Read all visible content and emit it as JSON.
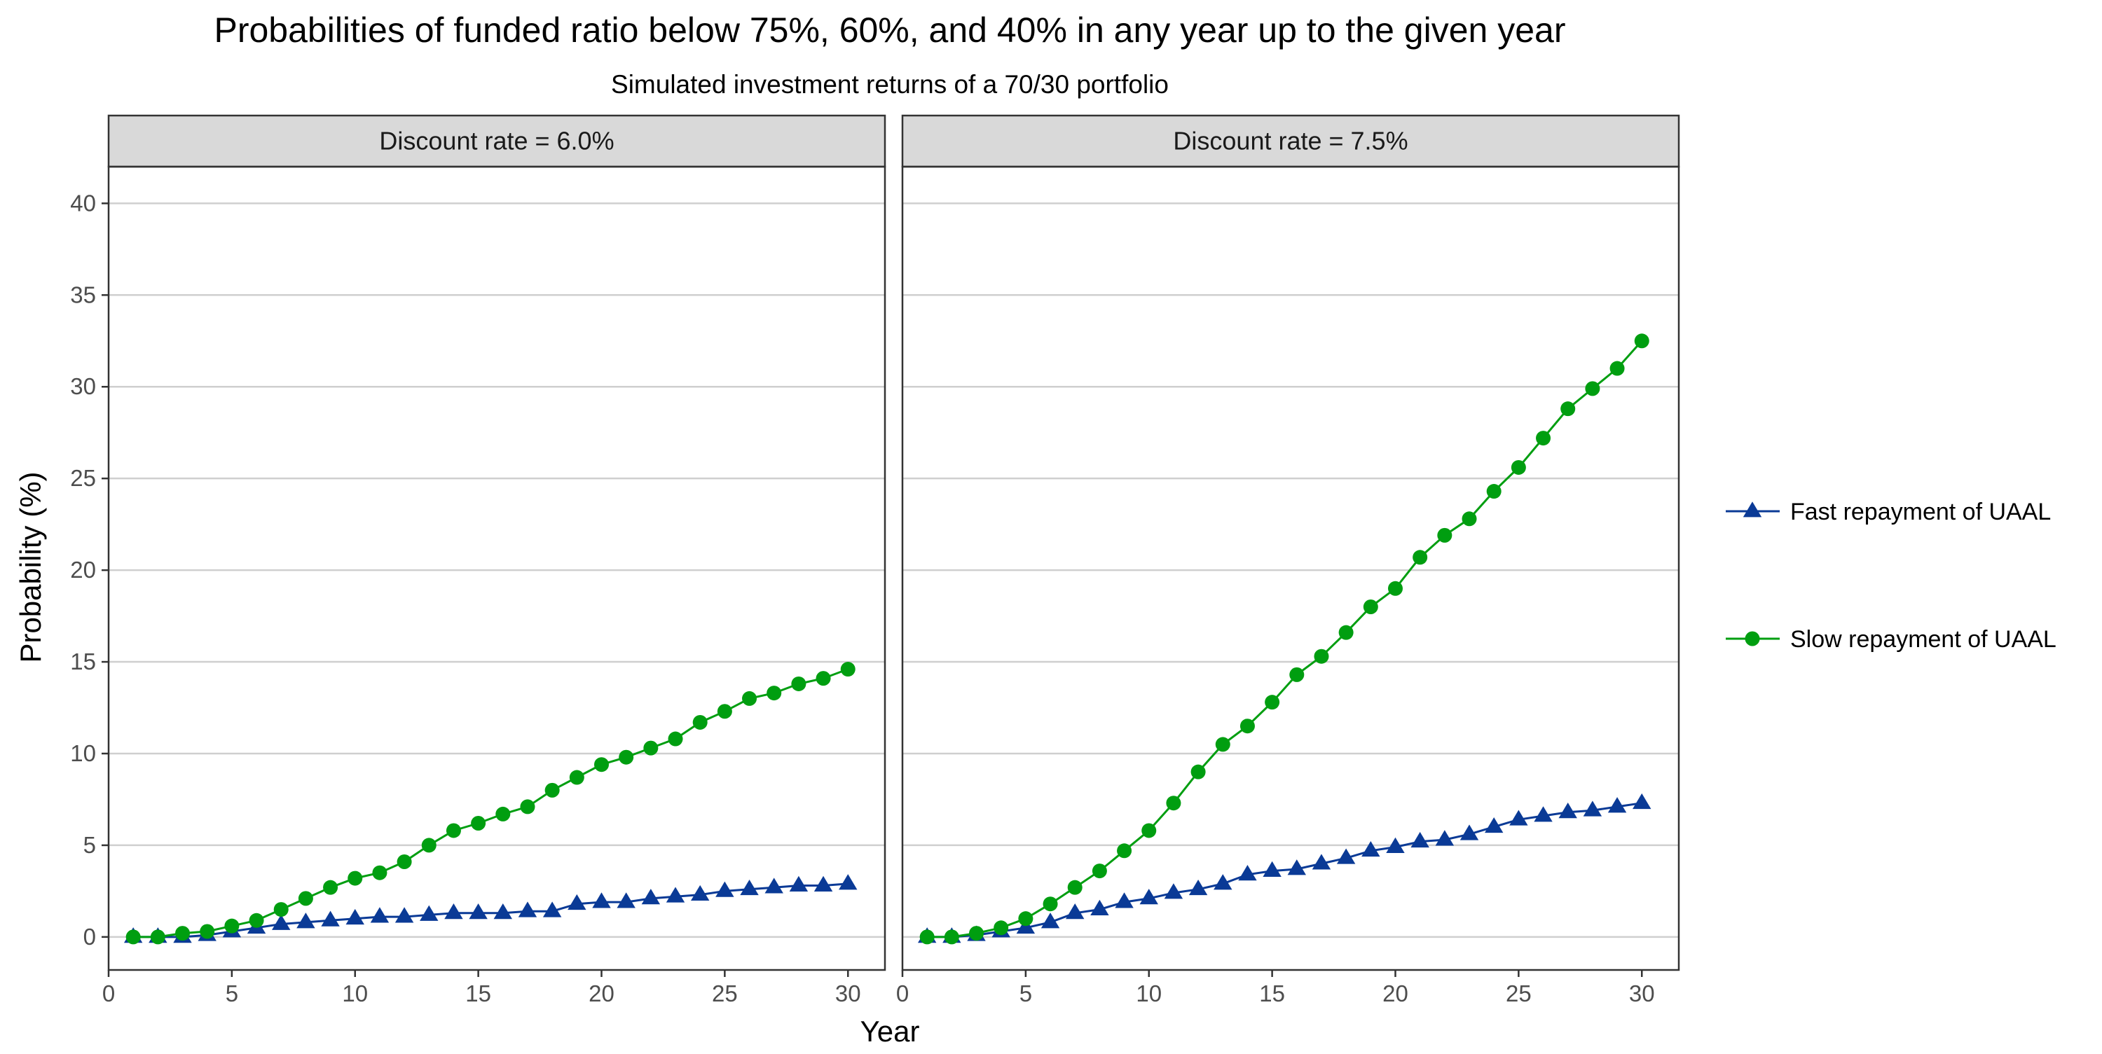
{
  "chart_data": {
    "type": "line",
    "title": "Probabilities of funded ratio below 75%, 60%, and 40% in any year up to the given year",
    "subtitle": "Simulated investment returns of a 70/30 portfolio",
    "xlabel": "Year",
    "ylabel": "Probability (%)",
    "xlim": [
      0,
      31.5
    ],
    "ylim": [
      -1.8,
      42
    ],
    "x_ticks": [
      0,
      5,
      10,
      15,
      20,
      25,
      30
    ],
    "y_ticks": [
      0,
      5,
      10,
      15,
      20,
      25,
      30,
      35,
      40
    ],
    "grid": "horizontal",
    "legend_position": "right",
    "colors": {
      "fast": "#0a3a96",
      "slow": "#009e10"
    },
    "legend": [
      {
        "key": "fast",
        "label": "Fast repayment of UAAL",
        "marker": "triangle"
      },
      {
        "key": "slow",
        "label": "Slow repayment of UAAL",
        "marker": "circle"
      }
    ],
    "x": [
      1,
      2,
      3,
      4,
      5,
      6,
      7,
      8,
      9,
      10,
      11,
      12,
      13,
      14,
      15,
      16,
      17,
      18,
      19,
      20,
      21,
      22,
      23,
      24,
      25,
      26,
      27,
      28,
      29,
      30
    ],
    "panels": [
      {
        "strip": "Discount rate = 6.0%",
        "series": [
          {
            "key": "fast",
            "values": [
              0,
              0,
              0,
              0.1,
              0.3,
              0.5,
              0.7,
              0.8,
              0.9,
              1.0,
              1.1,
              1.1,
              1.2,
              1.3,
              1.3,
              1.3,
              1.4,
              1.4,
              1.8,
              1.9,
              1.9,
              2.1,
              2.2,
              2.3,
              2.5,
              2.6,
              2.7,
              2.8,
              2.8,
              2.9
            ]
          },
          {
            "key": "slow",
            "values": [
              0,
              0,
              0.2,
              0.3,
              0.6,
              0.9,
              1.5,
              2.1,
              2.7,
              3.2,
              3.5,
              4.1,
              5.0,
              5.8,
              6.2,
              6.7,
              7.1,
              8.0,
              8.7,
              9.4,
              9.8,
              10.3,
              10.8,
              11.7,
              12.3,
              13.0,
              13.3,
              13.8,
              14.1,
              14.6
            ]
          }
        ]
      },
      {
        "strip": "Discount rate = 7.5%",
        "series": [
          {
            "key": "fast",
            "values": [
              0,
              0,
              0.1,
              0.3,
              0.5,
              0.8,
              1.3,
              1.5,
              1.9,
              2.1,
              2.4,
              2.6,
              2.9,
              3.4,
              3.6,
              3.7,
              4.0,
              4.3,
              4.7,
              4.9,
              5.2,
              5.3,
              5.6,
              6.0,
              6.4,
              6.6,
              6.8,
              6.9,
              7.1,
              7.3
            ]
          },
          {
            "key": "slow",
            "values": [
              0,
              0,
              0.2,
              0.5,
              1.0,
              1.8,
              2.7,
              3.6,
              4.7,
              5.8,
              7.3,
              9.0,
              10.5,
              11.5,
              12.8,
              14.3,
              15.3,
              16.6,
              18.0,
              19.0,
              20.7,
              21.9,
              22.8,
              24.3,
              25.6,
              27.2,
              28.8,
              29.9,
              31.0,
              32.5
            ]
          }
        ]
      }
    ]
  }
}
